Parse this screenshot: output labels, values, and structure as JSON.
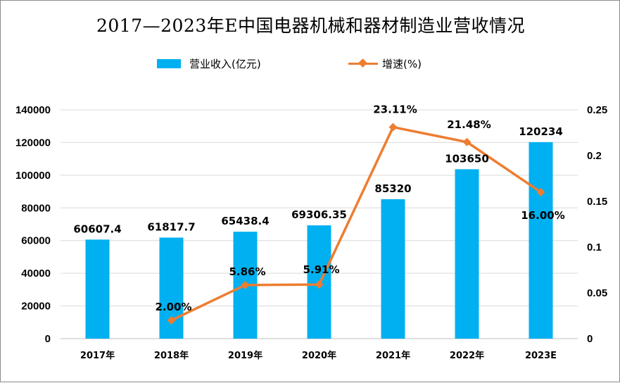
{
  "chart_data": {
    "type": "bar",
    "title": "2017—2023年E中国电器机械和器材制造业营收情况",
    "categories": [
      "2017年",
      "2018年",
      "2019年",
      "2020年",
      "2021年",
      "2022年",
      "2023E"
    ],
    "series": [
      {
        "name": "营业收入(亿元)",
        "type": "bar",
        "axis": "left",
        "color": "#00B0F0",
        "values": [
          60607.4,
          61817.7,
          65438.4,
          69306.35,
          85320,
          103650,
          120234
        ],
        "labels": [
          "60607.4",
          "61817.7",
          "65438.4",
          "69306.35",
          "85320",
          "103650",
          "120234"
        ]
      },
      {
        "name": "增速(%)",
        "type": "line",
        "axis": "right",
        "color": "#ED7D31",
        "values": [
          null,
          0.02,
          0.0586,
          0.0591,
          0.2311,
          0.2148,
          0.16
        ],
        "labels": [
          "",
          "2.00%",
          "5.86%",
          "5.91%",
          "23.11%",
          "21.48%",
          "16.00%"
        ]
      }
    ],
    "y_left": {
      "min": 0,
      "max": 140000,
      "step": 20000,
      "ticks": [
        "0",
        "20000",
        "40000",
        "60000",
        "80000",
        "100000",
        "120000",
        "140000"
      ]
    },
    "y_right": {
      "min": 0,
      "max": 0.25,
      "step": 0.05,
      "ticks": [
        "0",
        "0.05",
        "0.1",
        "0.15",
        "0.2",
        "0.25"
      ]
    },
    "grid": true,
    "legend": "top-center"
  }
}
